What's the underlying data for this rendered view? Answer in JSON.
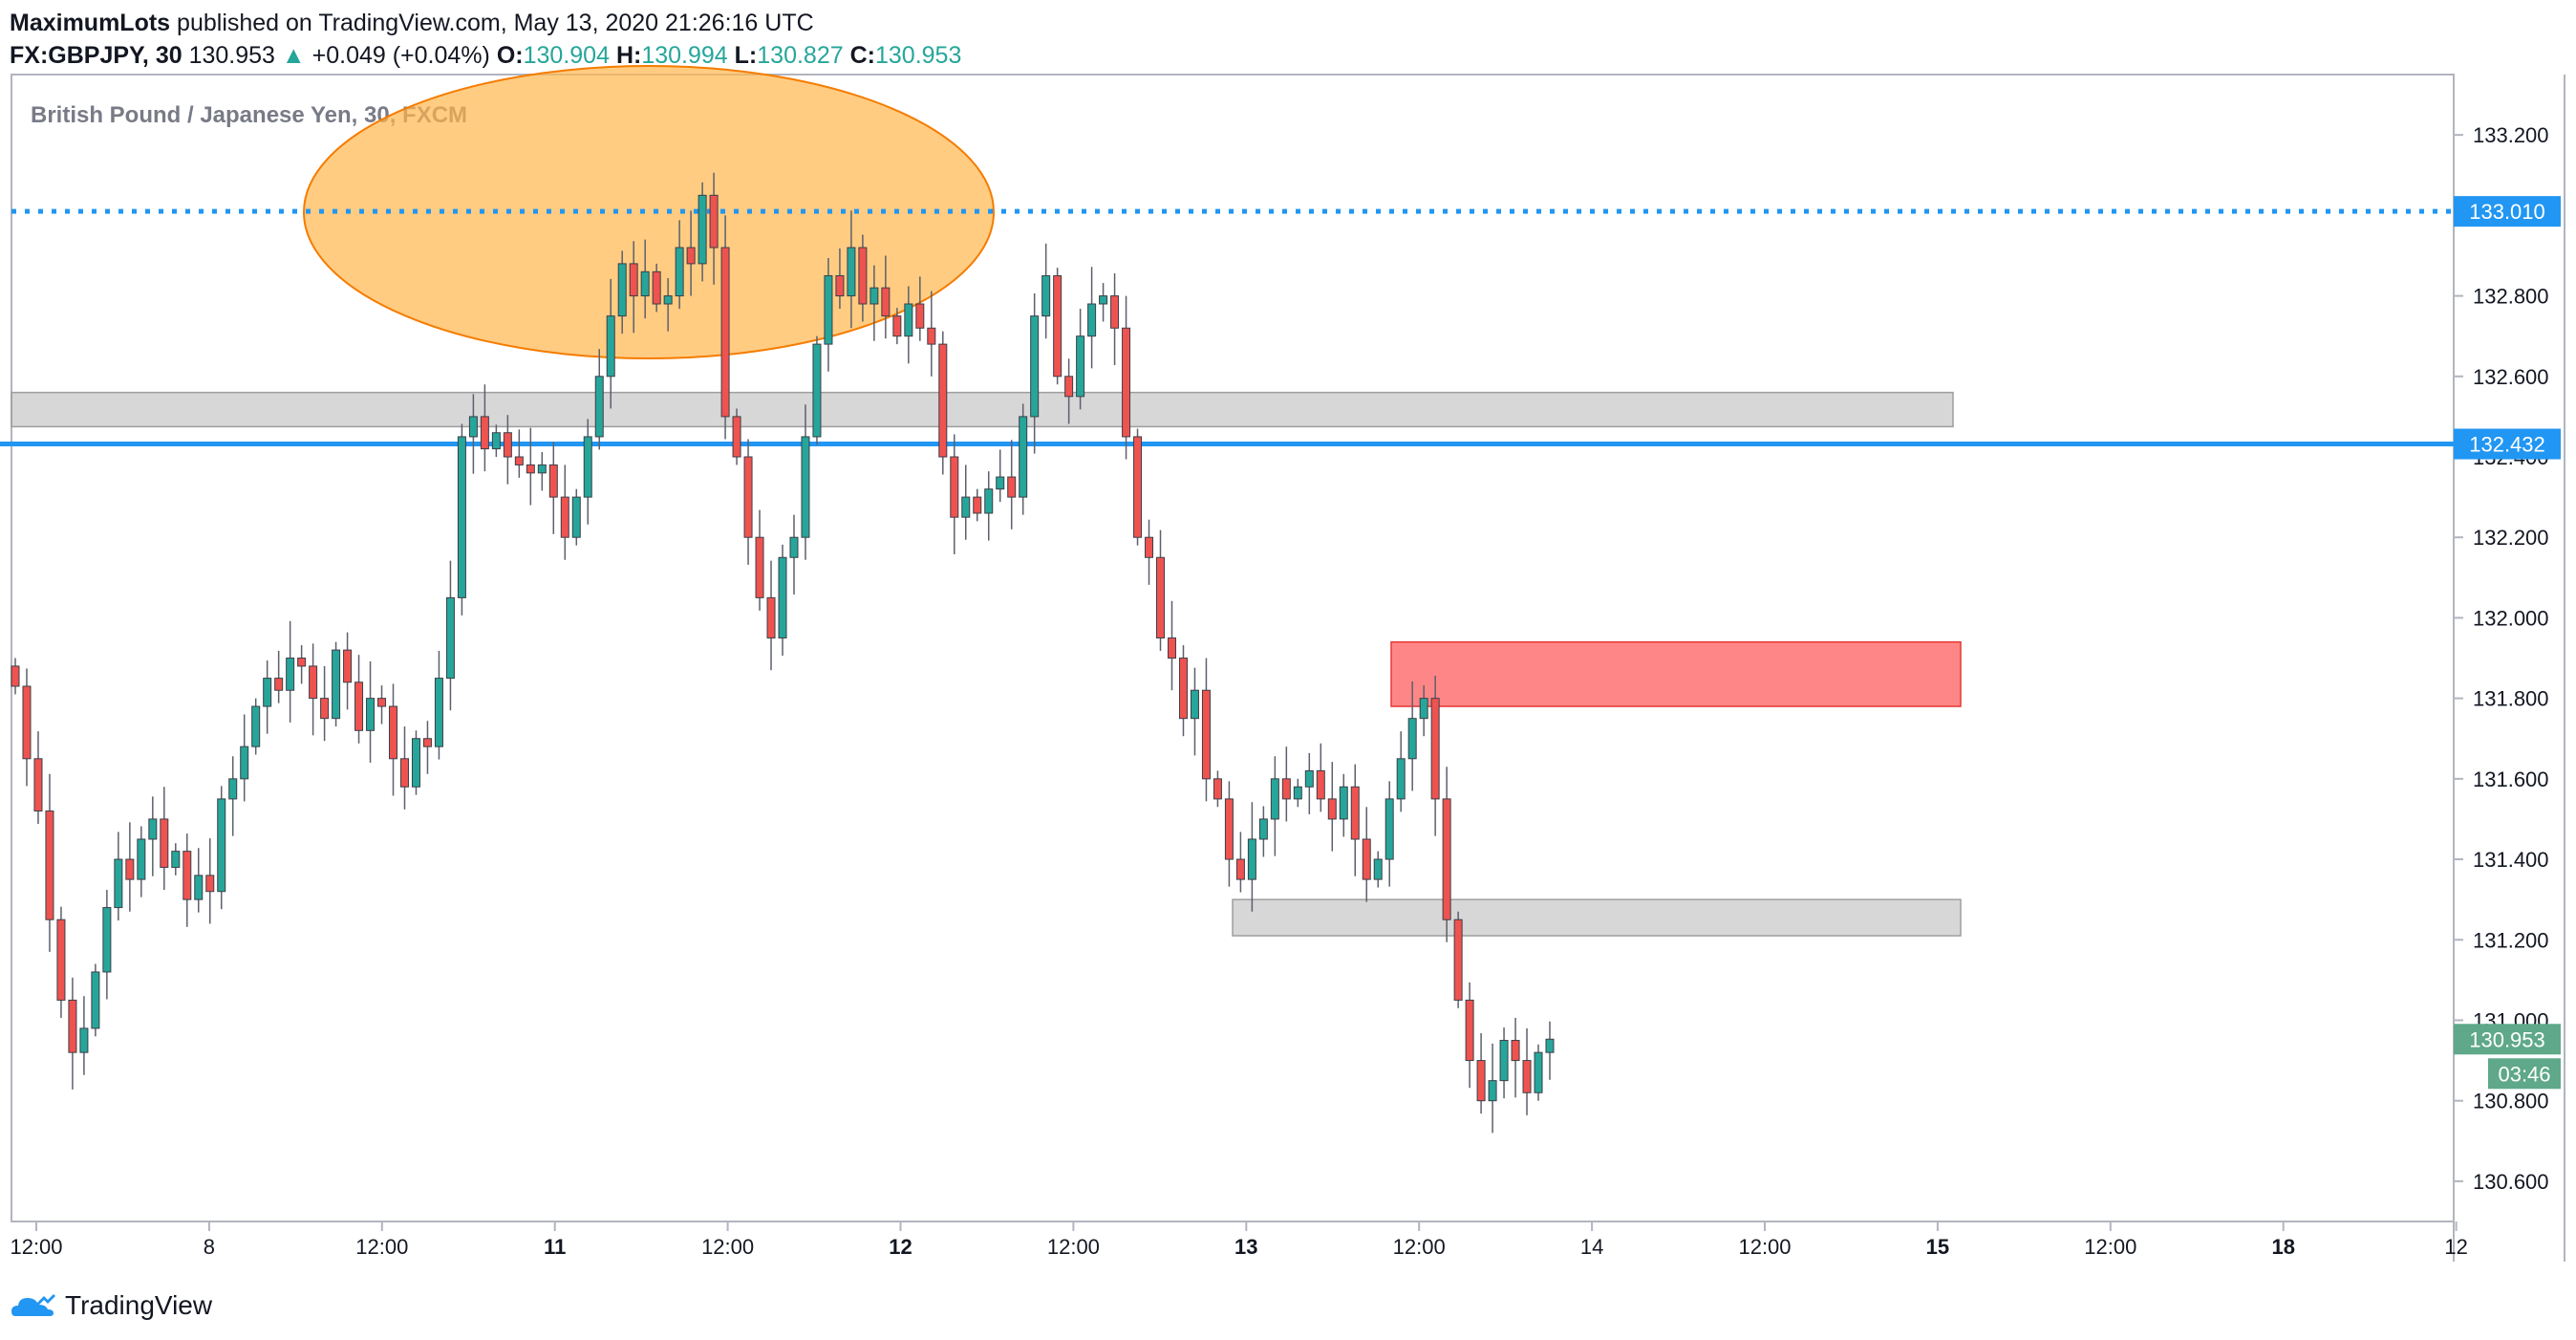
{
  "header": {
    "author": "MaximumLots",
    "published_text": "published on TradingView.com, May 13, 2020 21:26:16 UTC",
    "symbol": "FX:GBPJPY, 30",
    "last": "130.953",
    "change_arrow": "▲",
    "change": "+0.049 (+0.04%)",
    "o_label": "O:",
    "o_value": "130.904",
    "h_label": "H:",
    "h_value": "130.994",
    "l_label": "L:",
    "l_value": "130.827",
    "c_label": "C:",
    "c_value": "130.953"
  },
  "footer": {
    "brand": "TradingView",
    "logo_icon": "tradingview-cloud-icon"
  },
  "colors": {
    "up": "#26a69a",
    "down": "#ef5350",
    "ellipse_fill": "#ffb74d",
    "ellipse_stroke": "#f57c00",
    "resistance_line": "#2196f3",
    "support_line": "#2196f3",
    "supply_zone": "#ff5252",
    "gray_zone": "#bdbdbd"
  },
  "chart_data": {
    "type": "candlestick",
    "title": "British Pound / Japanese Yen, 30, FXCM",
    "ylim": [
      130.5,
      133.35
    ],
    "y_ticks": [
      "133.200",
      "132.800",
      "132.600",
      "132.400",
      "132.200",
      "132.000",
      "131.800",
      "131.600",
      "131.400",
      "131.200",
      "131.000",
      "130.800",
      "130.600"
    ],
    "x_ticks": [
      {
        "label": "12:00",
        "bold": false
      },
      {
        "label": "8",
        "bold": false
      },
      {
        "label": "12:00",
        "bold": false
      },
      {
        "label": "11",
        "bold": true
      },
      {
        "label": "12:00",
        "bold": false
      },
      {
        "label": "12",
        "bold": true
      },
      {
        "label": "12:00",
        "bold": false
      },
      {
        "label": "13",
        "bold": true
      },
      {
        "label": "12:00",
        "bold": false
      },
      {
        "label": "14",
        "bold": false
      },
      {
        "label": "12:00",
        "bold": false
      },
      {
        "label": "15",
        "bold": true
      },
      {
        "label": "12:00",
        "bold": false
      },
      {
        "label": "18",
        "bold": true
      },
      {
        "label": "12",
        "bold": false
      }
    ],
    "price_labels": [
      {
        "name": "resistance",
        "value": 133.01,
        "text": "133.010"
      },
      {
        "name": "support",
        "value": 132.432,
        "text": "132.432"
      },
      {
        "name": "last",
        "value": 130.953,
        "text": "130.953"
      }
    ],
    "countdown": "03:46",
    "zones": {
      "top_gray": [
        132.475,
        132.56
      ],
      "supply_red": [
        131.78,
        131.94
      ],
      "bottom_gray": [
        131.21,
        131.3
      ]
    },
    "closes": [
      131.83,
      131.65,
      131.52,
      131.25,
      131.05,
      130.92,
      130.98,
      131.12,
      131.28,
      131.4,
      131.35,
      131.45,
      131.5,
      131.38,
      131.42,
      131.3,
      131.36,
      131.32,
      131.55,
      131.6,
      131.68,
      131.78,
      131.85,
      131.82,
      131.9,
      131.88,
      131.8,
      131.75,
      131.92,
      131.84,
      131.72,
      131.8,
      131.78,
      131.65,
      131.58,
      131.7,
      131.68,
      131.85,
      132.05,
      132.45,
      132.5,
      132.42,
      132.46,
      132.4,
      132.38,
      132.36,
      132.38,
      132.3,
      132.2,
      132.3,
      132.45,
      132.6,
      132.75,
      132.88,
      132.8,
      132.86,
      132.78,
      132.8,
      132.92,
      132.88,
      133.05,
      132.92,
      132.5,
      132.4,
      132.2,
      132.05,
      131.95,
      132.15,
      132.2,
      132.45,
      132.68,
      132.85,
      132.8,
      132.92,
      132.78,
      132.82,
      132.75,
      132.7,
      132.78,
      132.72,
      132.68,
      132.4,
      132.25,
      132.3,
      132.26,
      132.32,
      132.35,
      132.3,
      132.5,
      132.75,
      132.85,
      132.6,
      132.55,
      132.7,
      132.78,
      132.8,
      132.72,
      132.45,
      132.2,
      132.15,
      131.95,
      131.9,
      131.75,
      131.82,
      131.6,
      131.55,
      131.4,
      131.35,
      131.45,
      131.5,
      131.6,
      131.55,
      131.58,
      131.62,
      131.55,
      131.5,
      131.58,
      131.45,
      131.35,
      131.4,
      131.55,
      131.65,
      131.75,
      131.8,
      131.55,
      131.25,
      131.05,
      130.9,
      130.8,
      130.85,
      130.95,
      130.9,
      130.82,
      130.92,
      130.953
    ]
  }
}
